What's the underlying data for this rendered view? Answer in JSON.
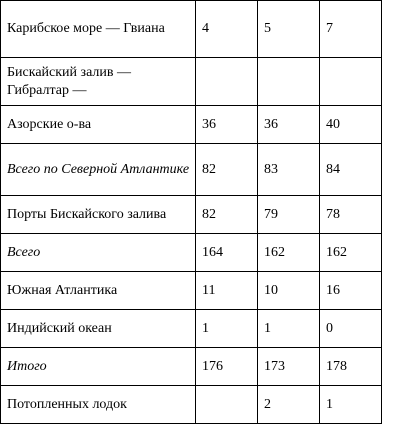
{
  "table": {
    "rows": [
      {
        "label": "Карибское море — Гвиана",
        "italic": false,
        "values": [
          "4",
          "5",
          "7"
        ]
      },
      {
        "label": "Бискайский залив — Гибралтар —",
        "italic": false,
        "values": [
          "",
          "",
          ""
        ]
      },
      {
        "label": "Азорские о-ва",
        "italic": false,
        "values": [
          "36",
          "36",
          "40"
        ]
      },
      {
        "label": "Всего по Северной Атлантике",
        "italic": true,
        "values": [
          "82",
          "83",
          "84"
        ]
      },
      {
        "label": "Порты Бискайского залива",
        "italic": false,
        "values": [
          "82",
          "79",
          "78"
        ]
      },
      {
        "label": "Всего",
        "italic": true,
        "values": [
          "164",
          "162",
          "162"
        ]
      },
      {
        "label": "Южная Атлантика",
        "italic": false,
        "values": [
          "11",
          "10",
          "16"
        ]
      },
      {
        "label": "Индийский океан",
        "italic": false,
        "values": [
          "1",
          "1",
          "0"
        ]
      },
      {
        "label": "Итого",
        "italic": true,
        "values": [
          "176",
          "173",
          "178"
        ]
      },
      {
        "label": "Потопленных лодок",
        "italic": false,
        "values": [
          "",
          "2",
          "1"
        ]
      }
    ]
  }
}
